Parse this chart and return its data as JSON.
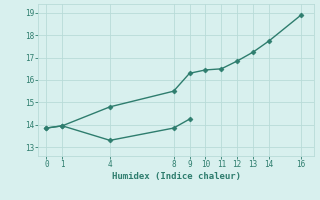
{
  "line1_x": [
    0,
    1,
    4,
    8,
    9,
    10,
    11,
    12,
    13,
    14,
    16
  ],
  "line1_y": [
    13.85,
    13.95,
    14.8,
    15.5,
    16.3,
    16.45,
    16.5,
    16.85,
    17.25,
    17.75,
    18.9
  ],
  "line2_x": [
    0,
    1,
    4,
    8,
    9
  ],
  "line2_y": [
    13.85,
    13.95,
    13.3,
    13.85,
    14.25
  ],
  "line_color": "#2e7d6e",
  "bg_color": "#d8f0ee",
  "grid_color": "#b8dbd8",
  "xlabel": "Humidex (Indice chaleur)",
  "xlim": [
    -0.5,
    16.8
  ],
  "ylim": [
    12.6,
    19.4
  ],
  "yticks": [
    13,
    14,
    15,
    16,
    17,
    18,
    19
  ],
  "xticks": [
    0,
    1,
    4,
    8,
    9,
    10,
    11,
    12,
    13,
    14,
    16
  ],
  "marker": "D",
  "markersize": 2.5,
  "linewidth": 1.0
}
